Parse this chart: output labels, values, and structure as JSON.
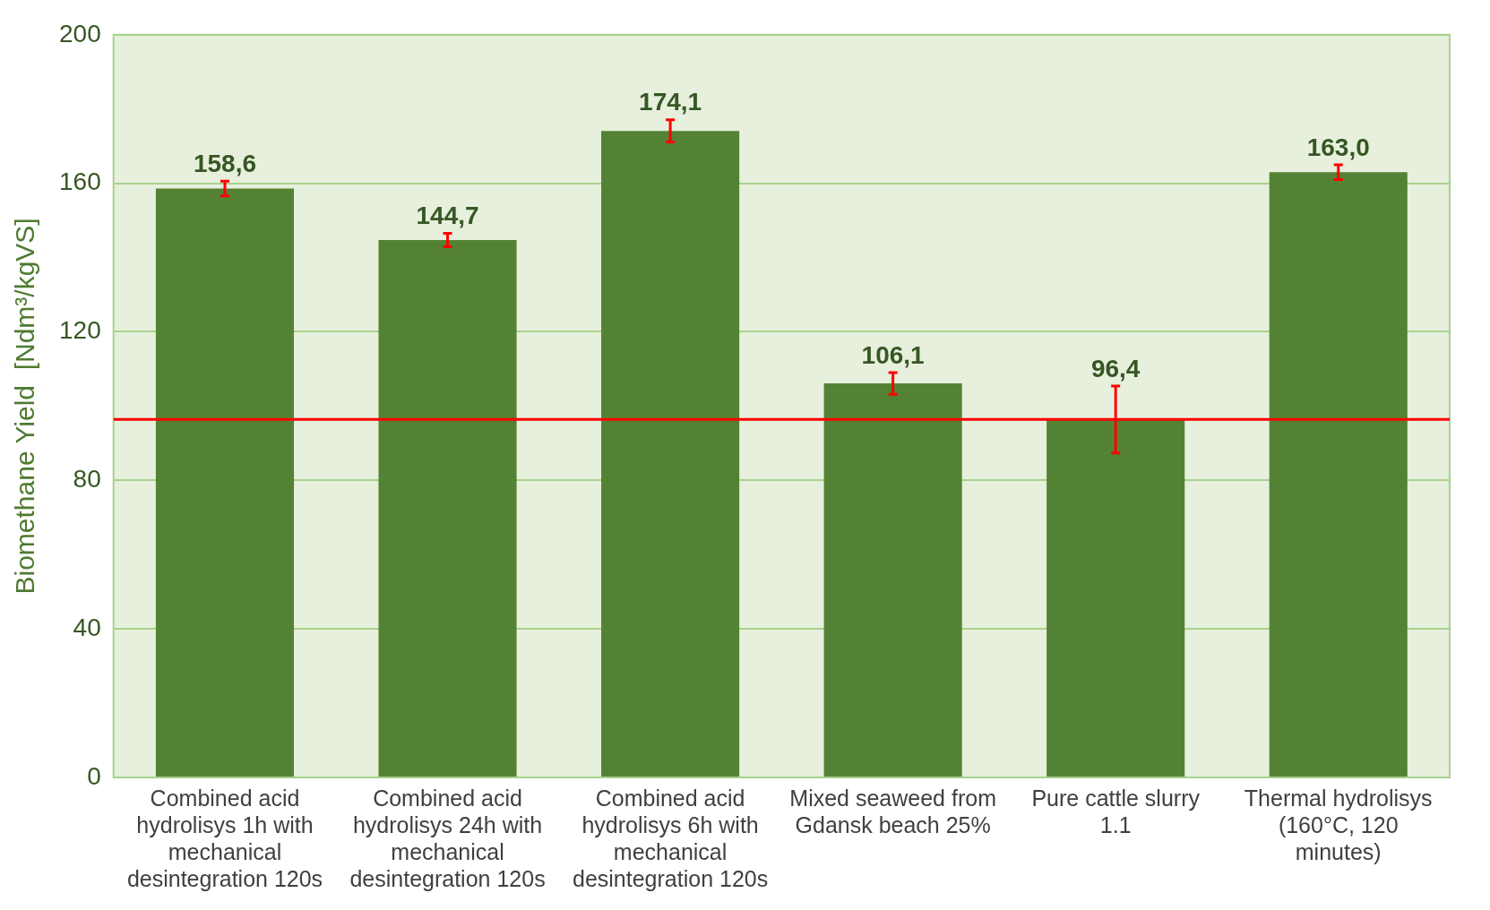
{
  "chart_data": {
    "type": "bar",
    "ylabel": "Biomethane Yield  [Ndm³/kgVS]",
    "categories": [
      "Combined acid hydrolisys 1h with mechanical desintegration 120s",
      "Combined acid hydrolisys 24h with mechanical desintegration 120s",
      "Combined acid hydrolisys 6h with mechanical desintegration 120s",
      "Mixed seaweed from Gdansk beach 25%",
      "Pure cattle slurry 1.1",
      "Thermal hydrolisys (160°C, 120 minutes)"
    ],
    "values": [
      158.6,
      144.7,
      174.1,
      106.1,
      96.4,
      163.0
    ],
    "value_labels": [
      "158,6",
      "144,7",
      "174,1",
      "106,1",
      "96,4",
      "163,0"
    ],
    "errors": [
      2,
      1.8,
      3,
      2.9,
      9,
      2
    ],
    "color": "#548235",
    "ylim": [
      0,
      200
    ],
    "yticks": [
      0,
      40,
      80,
      120,
      160,
      200
    ],
    "grid": "y",
    "legend": false,
    "ref_lines": [
      {
        "axis": "y",
        "value": 96.4,
        "color": "#ff0000"
      }
    ]
  }
}
